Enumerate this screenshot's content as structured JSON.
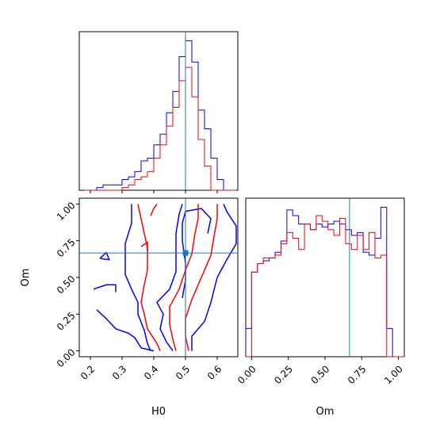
{
  "chart_data": {
    "type": "corner",
    "parameters": [
      "H0",
      "Om"
    ],
    "truth": {
      "H0": 0.5,
      "Om": 0.667
    },
    "colors": {
      "blue": "#0000ff",
      "red": "#ff0000",
      "truth": "#1f77b4"
    },
    "axes": {
      "H0": {
        "label": "H0",
        "lim": [
          0.165,
          0.665
        ],
        "ticks": [
          0.2,
          0.3,
          0.4,
          0.5,
          0.6
        ],
        "ticklabels": [
          "0.2",
          "0.3",
          "0.4",
          "0.5",
          "0.6"
        ]
      },
      "Om": {
        "label": "Om",
        "lim": [
          -0.04,
          1.04
        ],
        "ticks": [
          0.0,
          0.25,
          0.5,
          0.75,
          1.0
        ],
        "ticklabels": [
          "0.00",
          "0.25",
          "0.50",
          "0.75",
          "1.00"
        ]
      }
    },
    "hist_H0": {
      "bin_edges": [
        0.18,
        0.2,
        0.22,
        0.24,
        0.26,
        0.28,
        0.3,
        0.32,
        0.34,
        0.36,
        0.38,
        0.4,
        0.42,
        0.44,
        0.46,
        0.48,
        0.5,
        0.52,
        0.54,
        0.56,
        0.58,
        0.6,
        0.62,
        0.64,
        0.66
      ],
      "series": [
        {
          "color": "blue",
          "counts": [
            0,
            0,
            1,
            2,
            2,
            2,
            4,
            5,
            7,
            11,
            12,
            17,
            21,
            29,
            37,
            50,
            56,
            48,
            30,
            23,
            12,
            4,
            0,
            0
          ]
        },
        {
          "color": "red",
          "counts": [
            0,
            0,
            0,
            0,
            0,
            0,
            1,
            2,
            4,
            5,
            7,
            12,
            17,
            24,
            31,
            41,
            46,
            35,
            19,
            9,
            0,
            0,
            0,
            0
          ]
        }
      ]
    },
    "hist_Om": {
      "bin_edges": [
        -0.04,
        0.0,
        0.04,
        0.08,
        0.12,
        0.16,
        0.2,
        0.24,
        0.28,
        0.32,
        0.36,
        0.4,
        0.44,
        0.48,
        0.52,
        0.56,
        0.6,
        0.64,
        0.68,
        0.72,
        0.76,
        0.8,
        0.84,
        0.88,
        0.92,
        0.96,
        1.0,
        1.04
      ],
      "series": [
        {
          "color": "blue",
          "counts": [
            10,
            30,
            33,
            34,
            35,
            37,
            41,
            52,
            50,
            47,
            47,
            45,
            47,
            46,
            47,
            48,
            47,
            45,
            43,
            44,
            37,
            36,
            42,
            53,
            10,
            0,
            0
          ]
        },
        {
          "color": "red",
          "counts": [
            0,
            30,
            33,
            35,
            35,
            36,
            40,
            44,
            42,
            38,
            47,
            45,
            50,
            48,
            45,
            43,
            49,
            40,
            38,
            43,
            38,
            44,
            35,
            36,
            0,
            0,
            0
          ]
        }
      ]
    },
    "contours_2d": [
      {
        "color": "blue",
        "points": [
          [
            0.46,
            0.0
          ],
          [
            0.44,
            0.06
          ],
          [
            0.42,
            0.15
          ],
          [
            0.43,
            0.25
          ],
          [
            0.41,
            0.33
          ],
          [
            0.45,
            0.42
          ],
          [
            0.47,
            0.54
          ],
          [
            0.47,
            0.68
          ],
          [
            0.47,
            0.8
          ],
          [
            0.48,
            0.93
          ],
          [
            0.49,
            1.0
          ]
        ]
      },
      {
        "color": "blue",
        "points": [
          [
            0.39,
            0.0
          ],
          [
            0.38,
            0.05
          ],
          [
            0.37,
            0.14
          ],
          [
            0.35,
            0.25
          ],
          [
            0.35,
            0.33
          ],
          [
            0.33,
            0.42
          ],
          [
            0.31,
            0.52
          ],
          [
            0.31,
            0.62
          ],
          [
            0.31,
            0.73
          ],
          [
            0.33,
            0.87
          ],
          [
            0.33,
            1.0
          ]
        ]
      },
      {
        "color": "blue",
        "points": [
          [
            0.22,
            0.28
          ],
          [
            0.25,
            0.22
          ],
          [
            0.28,
            0.15
          ],
          [
            0.32,
            0.12
          ],
          [
            0.34,
            0.09
          ],
          [
            0.36,
            0.02
          ],
          [
            0.4,
            0.0
          ]
        ]
      },
      {
        "color": "blue",
        "points": [
          [
            0.23,
            0.63
          ],
          [
            0.25,
            0.67
          ],
          [
            0.26,
            0.62
          ],
          [
            0.23,
            0.63
          ]
        ]
      },
      {
        "color": "blue",
        "points": [
          [
            0.21,
            0.42
          ],
          [
            0.25,
            0.45
          ],
          [
            0.28,
            0.45
          ],
          [
            0.28,
            0.4
          ]
        ]
      },
      {
        "color": "blue",
        "points": [
          [
            0.52,
            0.0
          ],
          [
            0.52,
            0.1
          ],
          [
            0.56,
            0.2
          ],
          [
            0.58,
            0.33
          ],
          [
            0.6,
            0.5
          ],
          [
            0.63,
            0.62
          ],
          [
            0.66,
            0.73
          ],
          [
            0.66,
            0.85
          ],
          [
            0.63,
            0.95
          ],
          [
            0.62,
            1.0
          ]
        ]
      },
      {
        "color": "blue",
        "points": [
          [
            0.49,
            0.36
          ],
          [
            0.5,
            0.48
          ],
          [
            0.5,
            0.6
          ],
          [
            0.49,
            0.75
          ],
          [
            0.49,
            0.87
          ],
          [
            0.5,
            0.95
          ],
          [
            0.55,
            0.97
          ],
          [
            0.58,
            0.9
          ],
          [
            0.57,
            0.8
          ]
        ]
      },
      {
        "color": "red",
        "points": [
          [
            0.42,
            0.0
          ],
          [
            0.41,
            0.05
          ],
          [
            0.38,
            0.15
          ],
          [
            0.37,
            0.25
          ],
          [
            0.36,
            0.33
          ],
          [
            0.37,
            0.45
          ],
          [
            0.38,
            0.55
          ],
          [
            0.38,
            0.7
          ],
          [
            0.37,
            0.8
          ],
          [
            0.36,
            0.9
          ],
          [
            0.35,
            1.0
          ]
        ]
      },
      {
        "color": "red",
        "points": [
          [
            0.47,
            0.0
          ],
          [
            0.46,
            0.08
          ],
          [
            0.45,
            0.18
          ],
          [
            0.45,
            0.3
          ],
          [
            0.48,
            0.42
          ],
          [
            0.5,
            0.55
          ],
          [
            0.52,
            0.66
          ],
          [
            0.53,
            0.8
          ],
          [
            0.54,
            0.9
          ],
          [
            0.54,
            1.0
          ]
        ]
      },
      {
        "color": "red",
        "points": [
          [
            0.51,
            0.0
          ],
          [
            0.5,
            0.1
          ],
          [
            0.5,
            0.22
          ],
          [
            0.52,
            0.35
          ],
          [
            0.55,
            0.5
          ],
          [
            0.58,
            0.65
          ],
          [
            0.59,
            0.78
          ],
          [
            0.6,
            0.9
          ],
          [
            0.6,
            1.0
          ]
        ]
      },
      {
        "color": "red",
        "points": [
          [
            0.39,
            0.92
          ],
          [
            0.4,
            0.97
          ],
          [
            0.41,
            1.0
          ]
        ]
      },
      {
        "color": "red",
        "points": [
          [
            0.36,
            0.71
          ],
          [
            0.38,
            0.74
          ],
          [
            0.38,
            0.68
          ]
        ]
      }
    ]
  }
}
